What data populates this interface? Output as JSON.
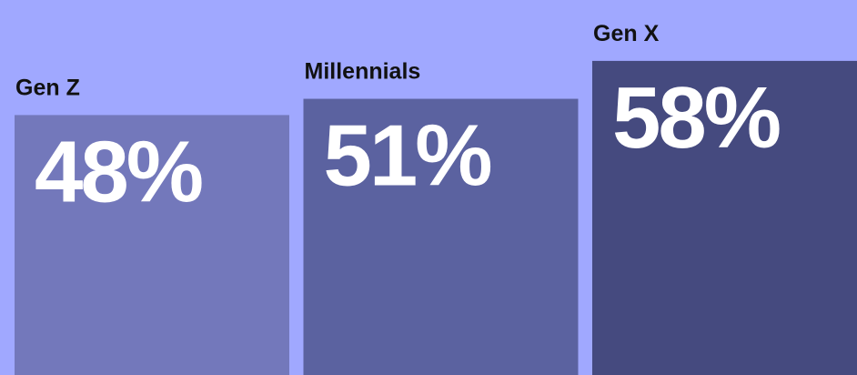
{
  "chart_data": {
    "type": "bar",
    "categories": [
      "Gen Z",
      "Millennials",
      "Gen X"
    ],
    "values": [
      48,
      51,
      58
    ],
    "value_labels": [
      "48%",
      "51%",
      "58%"
    ],
    "colors": [
      "#7378bb",
      "#5b62a0",
      "#454a7f"
    ]
  }
}
